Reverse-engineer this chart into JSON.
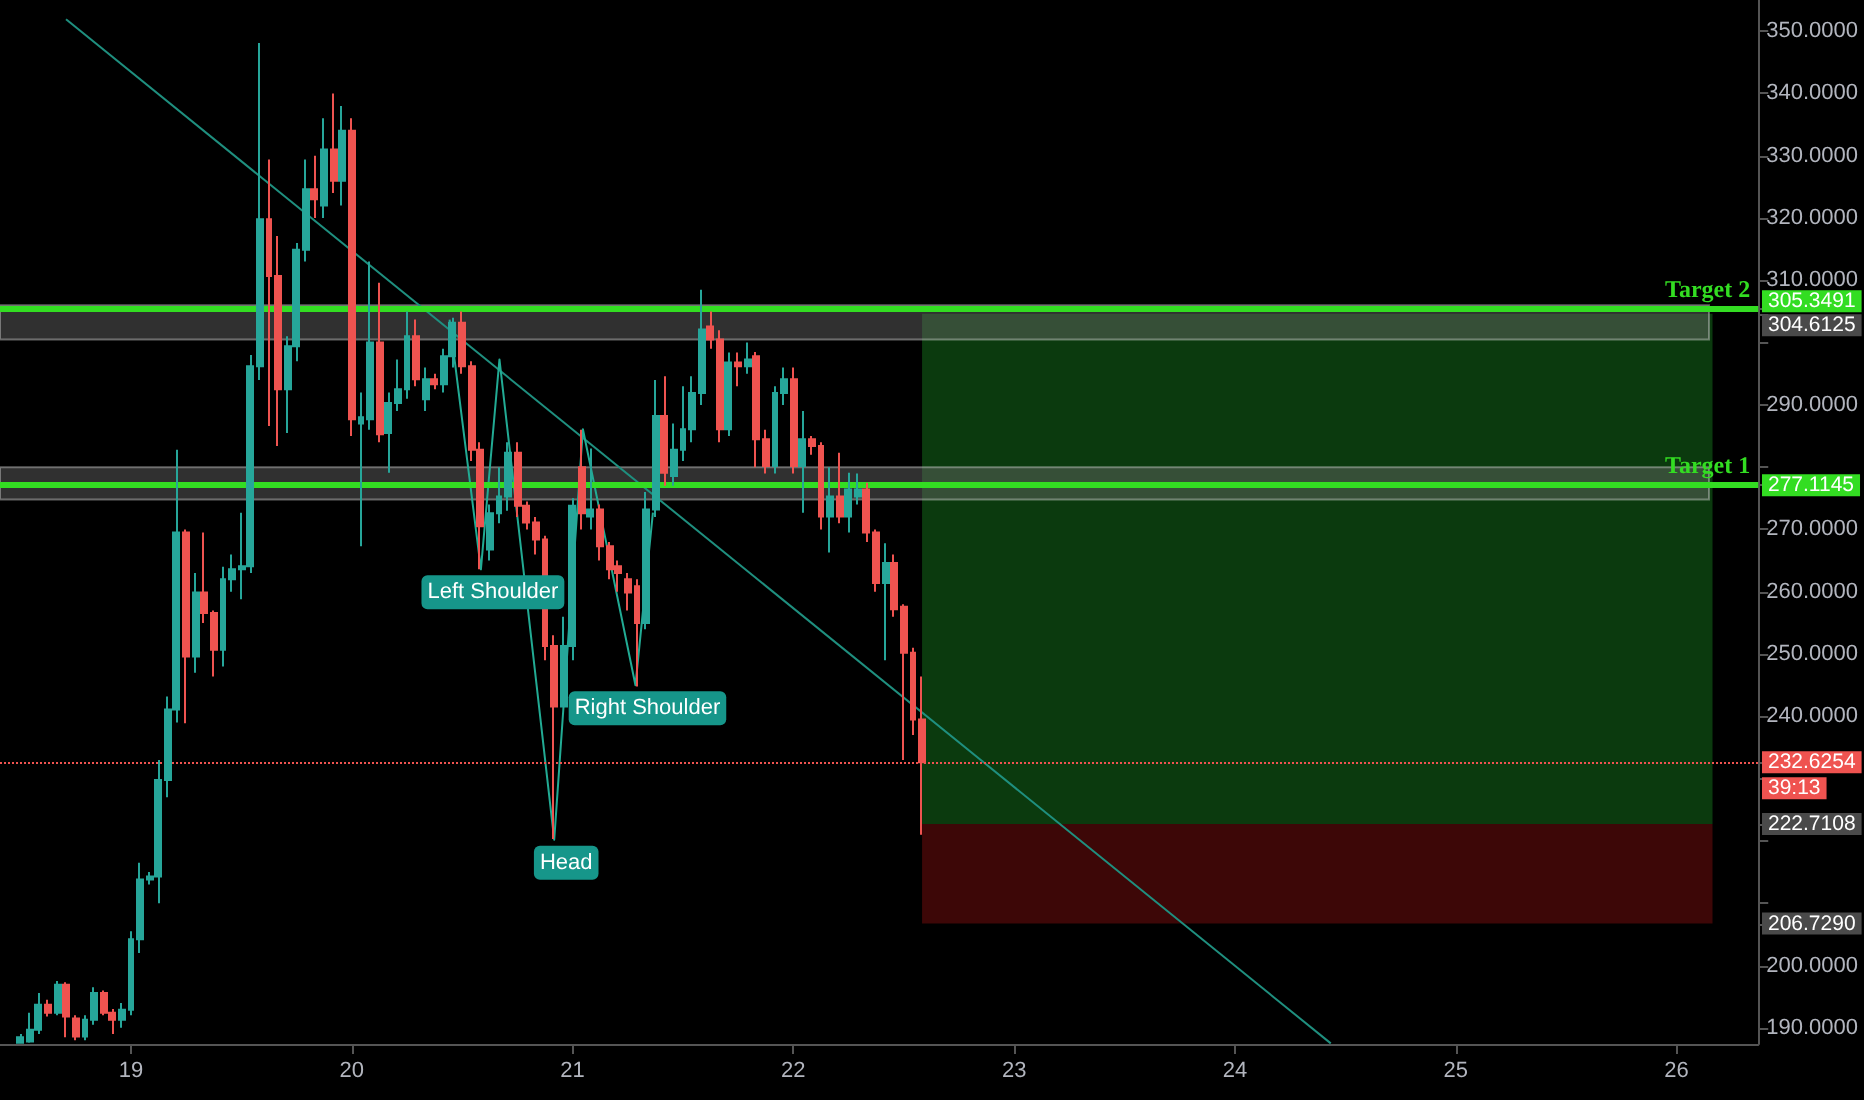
{
  "chart_data": {
    "type": "candlestick",
    "x": [
      18.5,
      18.542,
      18.583,
      18.625,
      18.667,
      18.708,
      18.75,
      18.792,
      18.833,
      18.875,
      18.917,
      18.958,
      19,
      19.042,
      19.083,
      19.125,
      19.167,
      19.208,
      19.25,
      19.292,
      19.333,
      19.375,
      19.417,
      19.458,
      19.5,
      19.542,
      19.583,
      19.625,
      19.667,
      19.708,
      19.75,
      19.792,
      19.833,
      19.875,
      19.917,
      19.958,
      20,
      20.042,
      20.083,
      20.125,
      20.167,
      20.208,
      20.25,
      20.292,
      20.333,
      20.375,
      20.417,
      20.458,
      20.5,
      20.542,
      20.583,
      20.625,
      20.667,
      20.708,
      20.75,
      20.792,
      20.833,
      20.875,
      20.917,
      20.958,
      21,
      21.042,
      21.083,
      21.125,
      21.167,
      21.208,
      21.25,
      21.292,
      21.333,
      21.375,
      21.417,
      21.458,
      21.5,
      21.542,
      21.583,
      21.625,
      21.667,
      21.708,
      21.75,
      21.792,
      21.833,
      21.875,
      21.917,
      21.958,
      22,
      22.042,
      22.083,
      22.125,
      22.167,
      22.208,
      22.25,
      22.292,
      22.333,
      22.375,
      22.417,
      22.458,
      22.5,
      22.542,
      22.583
    ],
    "ohlc": [
      [
        187.6,
        189,
        187.6,
        188.5
      ],
      [
        187.8,
        192.4,
        187.6,
        189.7
      ],
      [
        189.7,
        195.6,
        189,
        193.7
      ],
      [
        193.7,
        194.5,
        191.8,
        192.4
      ],
      [
        192.4,
        197.5,
        192,
        196.9
      ],
      [
        196.9,
        197.3,
        188.5,
        191.8
      ],
      [
        191.5,
        192,
        188,
        188.6
      ],
      [
        188.6,
        192,
        188,
        191.3
      ],
      [
        191.3,
        196.5,
        190.5,
        195.6
      ],
      [
        195.6,
        196,
        192,
        192.4
      ],
      [
        192.4,
        193,
        189,
        191.3
      ],
      [
        191.3,
        194,
        190,
        192.9
      ],
      [
        192.9,
        205.5,
        192,
        204.2
      ],
      [
        204.2,
        216.5,
        202,
        213.8
      ],
      [
        213.8,
        215,
        213,
        214.3
      ],
      [
        214.3,
        233,
        210,
        229.8
      ],
      [
        229.8,
        243.2,
        227,
        241.1
      ],
      [
        241.1,
        282.8,
        239,
        269.5
      ],
      [
        269.5,
        270,
        238.9,
        249.6
      ],
      [
        249.6,
        263,
        247,
        259.9
      ],
      [
        259.9,
        269.5,
        255,
        256.6
      ],
      [
        256.6,
        257,
        246.4,
        250.7
      ],
      [
        250.7,
        264,
        248,
        262
      ],
      [
        262,
        266,
        260,
        263.6
      ],
      [
        263.6,
        272.7,
        258.8,
        264.1
      ],
      [
        264.1,
        298,
        263,
        296.2
      ],
      [
        296.2,
        348.1,
        294,
        319.8
      ],
      [
        319.8,
        329.4,
        286.6,
        310.7
      ],
      [
        310.7,
        317.1,
        283.4,
        292.5
      ],
      [
        292.5,
        301,
        285.5,
        299.4
      ],
      [
        299.4,
        316,
        297,
        314.9
      ],
      [
        314.9,
        329.4,
        313,
        324.6
      ],
      [
        324.6,
        330,
        320,
        323
      ],
      [
        322,
        336,
        320,
        331
      ],
      [
        331,
        340,
        324,
        326
      ],
      [
        326,
        338,
        322,
        334
      ],
      [
        334,
        336,
        285,
        287.7
      ],
      [
        287,
        292,
        267.3,
        288
      ],
      [
        287.7,
        313,
        286,
        300
      ],
      [
        300,
        309.6,
        284,
        285.3
      ],
      [
        285.5,
        292,
        279.1,
        290.3
      ],
      [
        290.3,
        297.3,
        289,
        292.5
      ],
      [
        292.5,
        305,
        291,
        301
      ],
      [
        301,
        303.7,
        293,
        294.1
      ],
      [
        290.9,
        296,
        289,
        294.1
      ],
      [
        294.1,
        295,
        292.5,
        293.3
      ],
      [
        293.3,
        299,
        292,
        297.8
      ],
      [
        297.8,
        304,
        296,
        303.2
      ],
      [
        303.2,
        305,
        295,
        296.2
      ],
      [
        296.2,
        297,
        281,
        282.8
      ],
      [
        282.8,
        284,
        263.6,
        270.5
      ],
      [
        266.8,
        274,
        265,
        272.6
      ],
      [
        272.6,
        280,
        271,
        275.3
      ],
      [
        275.3,
        284,
        273,
        282.3
      ],
      [
        282.3,
        284,
        272,
        273.8
      ],
      [
        273.8,
        274.5,
        270,
        271.1
      ],
      [
        271.1,
        272,
        266,
        268.4
      ],
      [
        268.4,
        269,
        249,
        251.3
      ],
      [
        251.3,
        253,
        220.3,
        241.6
      ],
      [
        241.6,
        256,
        241.6,
        251.3
      ],
      [
        251.3,
        275,
        249,
        273.8
      ],
      [
        280,
        286,
        270,
        272.6
      ],
      [
        272.1,
        283,
        270,
        273.2
      ],
      [
        273.2,
        274,
        265,
        267.3
      ],
      [
        267.3,
        268,
        262,
        263.6
      ],
      [
        264.1,
        265,
        260,
        263
      ],
      [
        262,
        263,
        257,
        259.9
      ],
      [
        260.9,
        262,
        244.8,
        255
      ],
      [
        255,
        276,
        254,
        273.2
      ],
      [
        273.2,
        294,
        272,
        288.2
      ],
      [
        288.2,
        294.6,
        277,
        279.1
      ],
      [
        278.6,
        287,
        277,
        282.8
      ],
      [
        282.8,
        293,
        281,
        286.1
      ],
      [
        286.1,
        294.6,
        284,
        291.9
      ],
      [
        291.9,
        308.5,
        290,
        302.1
      ],
      [
        302.6,
        305,
        299,
        300.5
      ],
      [
        300.5,
        302,
        284,
        286.1
      ],
      [
        286.1,
        298.4,
        285,
        296.8
      ],
      [
        296.8,
        298.4,
        293,
        296.2
      ],
      [
        296.2,
        300,
        295,
        297.3
      ],
      [
        297.8,
        298.5,
        280,
        284.5
      ],
      [
        284.5,
        286,
        279,
        280.2
      ],
      [
        280.2,
        293,
        279,
        291.9
      ],
      [
        291.9,
        296,
        290,
        294.1
      ],
      [
        294.1,
        296,
        279,
        280.2
      ],
      [
        280.2,
        289,
        272.7,
        284.5
      ],
      [
        284.5,
        285,
        282,
        283.4
      ],
      [
        283.4,
        284,
        270,
        272.1
      ],
      [
        272.1,
        280,
        266.3,
        275.3
      ],
      [
        275.3,
        282.3,
        271,
        272.1
      ],
      [
        272.1,
        279.1,
        269.5,
        276.4
      ],
      [
        275.3,
        279,
        274,
        276.4
      ],
      [
        276.4,
        277.5,
        268,
        269.5
      ],
      [
        269.5,
        270,
        260,
        261.4
      ],
      [
        261.4,
        267.8,
        249,
        264.6
      ],
      [
        264.6,
        266,
        256,
        257.2
      ],
      [
        257.6,
        258,
        233,
        250.2
      ],
      [
        250.2,
        251,
        237,
        239.5
      ],
      [
        239.5,
        246.4,
        221,
        232.6254
      ]
    ],
    "series": [
      {
        "type": "line",
        "color": "#1f8f7f",
        "x": [
          18.706,
          24.434
        ],
        "values": [
          351.9,
          187.5
        ]
      },
      {
        "type": "line",
        "color": "#22ab94",
        "x": [
          20.443,
          20.585,
          20.669,
          20.917,
          21.047,
          21.285,
          21.364
        ],
        "values": [
          303.7,
          263.6,
          297.3,
          220.2,
          286.1,
          245,
          272.7
        ]
      }
    ],
    "xlim": [
      18.407,
      26.37
    ],
    "xticks": [
      19,
      20,
      21,
      22,
      23,
      24,
      25,
      26
    ],
    "ylim": [
      187.4,
      355
    ],
    "yticks": [
      {
        "value": 190,
        "label": "190.0000"
      },
      {
        "value": 200,
        "label": "200.0000"
      },
      {
        "value": 206.729,
        "label": "206.7290"
      },
      {
        "value": 210,
        "label": null
      },
      {
        "value": 220,
        "label": null
      },
      {
        "value": 222.7108,
        "label": "222.7108"
      },
      {
        "value": 230,
        "label": null
      },
      {
        "value": 232.6254,
        "label": "232.6254"
      },
      {
        "value": 240,
        "label": "240.0000"
      },
      {
        "value": 250,
        "label": "250.0000"
      },
      {
        "value": 260,
        "label": "260.0000"
      },
      {
        "value": 270,
        "label": "270.0000"
      },
      {
        "value": 277.1145,
        "label": "277.1145"
      },
      {
        "value": 280,
        "label": null
      },
      {
        "value": 290,
        "label": "290.0000"
      },
      {
        "value": 300,
        "label": null
      },
      {
        "value": 304.6125,
        "label": "304.6125"
      },
      {
        "value": 305.3491,
        "label": "305.3491"
      },
      {
        "value": 310,
        "label": "310.0000"
      },
      {
        "value": 320,
        "label": "320.0000"
      },
      {
        "value": 330,
        "label": "330.0000"
      },
      {
        "value": 340,
        "label": "340.0000"
      },
      {
        "value": 350,
        "label": "350.0000"
      }
    ],
    "ref_lines": [
      {
        "axis": "y",
        "value": 305.3491,
        "label": "Target 2",
        "color": "#33dd22",
        "line_style": "solid"
      },
      {
        "axis": "y",
        "value": 277.1145,
        "label": "Target 1",
        "color": "#33dd22",
        "line_style": "solid"
      },
      {
        "axis": "y",
        "value": 232.6254,
        "label": null,
        "color": "#ef5350",
        "line_style": "dotted"
      }
    ],
    "bands": [
      {
        "axis": "y",
        "from": 222.7108,
        "to": 304.6125,
        "color": "#0b3a0e"
      },
      {
        "axis": "y",
        "from": 206.729,
        "to": 222.7108,
        "color": "#3d0707"
      },
      {
        "axis": "y",
        "from": 300.5,
        "to": 306,
        "color": "#6a6a6a"
      },
      {
        "axis": "y",
        "from": 274.8,
        "to": 280,
        "color": "#6a6a6a"
      }
    ],
    "annotations": [
      {
        "text": "Left Shoulder",
        "x": 20.585,
        "y": 263.6
      },
      {
        "text": "Head",
        "x": 20.917,
        "y": 220.2
      },
      {
        "text": "Right Shoulder",
        "x": 21.285,
        "y": 245
      },
      "39:13"
    ],
    "grid": false
  }
}
